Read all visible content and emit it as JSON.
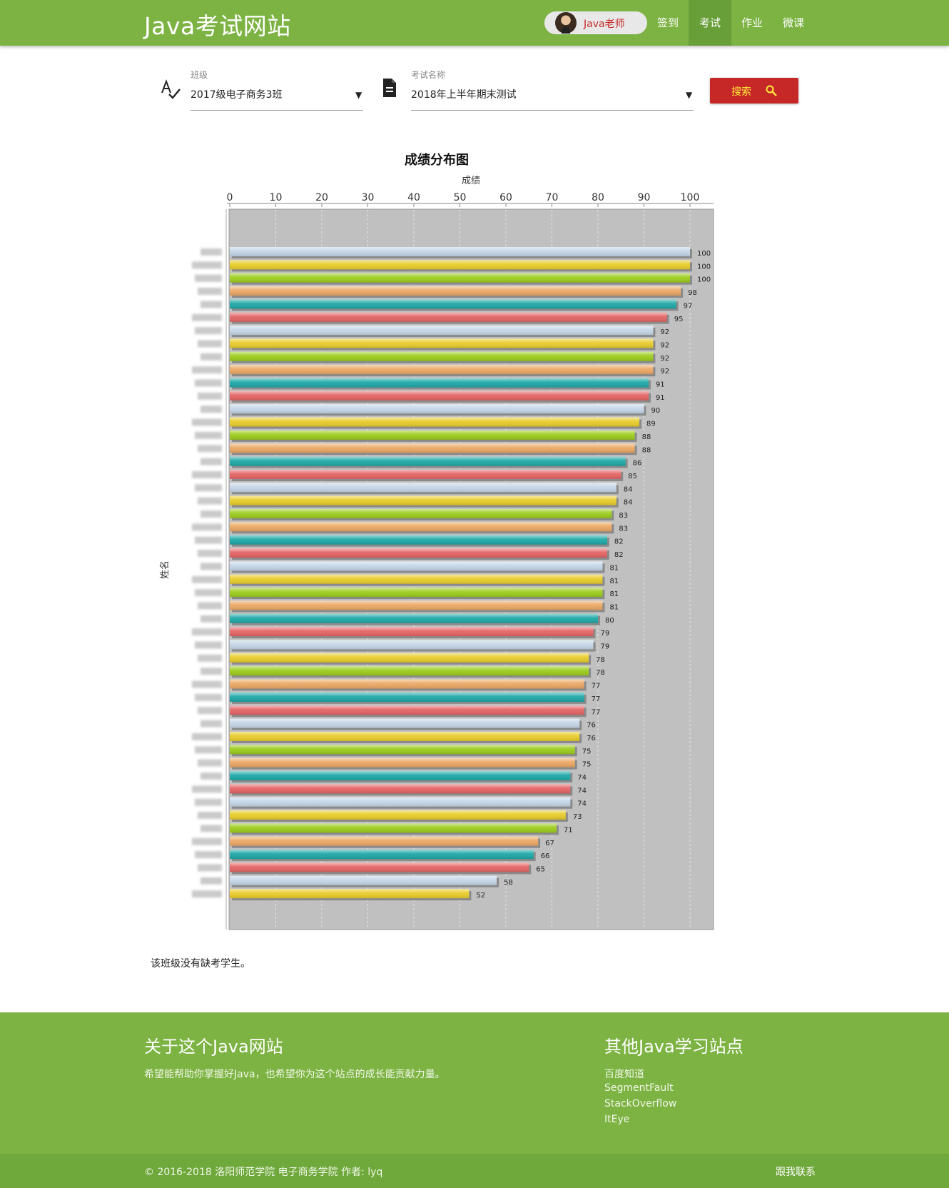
{
  "header": {
    "brand": "Java考试网站",
    "user": {
      "name": "Java老师",
      "avatar_icon": "user-avatar"
    },
    "nav": [
      {
        "label": "签到",
        "active": false
      },
      {
        "label": "考试",
        "active": true
      },
      {
        "label": "作业",
        "active": false
      },
      {
        "label": "微课",
        "active": false
      }
    ]
  },
  "filters": {
    "class_label": "班级",
    "class_value": "2017级电子商务3班",
    "class_icon": "spellcheck-icon",
    "exam_label": "考试名称",
    "exam_value": "2018年上半年期末测试",
    "exam_icon": "document-icon",
    "search_label": "搜索",
    "search_icon": "magnifier-icon"
  },
  "chart_data": {
    "type": "bar",
    "orientation": "horizontal",
    "title": "成绩分布图",
    "xlabel": "成绩",
    "ylabel": "姓名",
    "xlim": [
      0,
      105
    ],
    "xticks": [
      0,
      10,
      20,
      30,
      40,
      50,
      60,
      70,
      80,
      90,
      100
    ],
    "grid": true,
    "values": [
      100,
      100,
      100,
      98,
      97,
      95,
      92,
      92,
      92,
      92,
      91,
      91,
      90,
      89,
      88,
      88,
      86,
      85,
      84,
      84,
      83,
      83,
      82,
      82,
      81,
      81,
      81,
      81,
      80,
      79,
      79,
      78,
      78,
      77,
      77,
      77,
      76,
      76,
      75,
      75,
      74,
      74,
      74,
      73,
      71,
      67,
      66,
      65,
      58,
      52
    ],
    "colors": [
      "#c5d6e8",
      "#e8cc2a",
      "#9ccc1c",
      "#eba865",
      "#1fa8a8",
      "#e46464"
    ]
  },
  "absence_note": "该班级没有缺考学生。",
  "footer": {
    "about_title": "关于这个Java网站",
    "about_desc": "希望能帮助你掌握好Java，也希望你为这个站点的成长能贡献力量。",
    "links_title": "其他Java学习站点",
    "links": [
      "百度知道",
      "SegmentFault",
      "StackOverflow",
      "ItEye"
    ],
    "copyright": "© 2016-2018 洛阳师范学院 电子商务学院  作者: lyq",
    "contact": "跟我联系"
  }
}
